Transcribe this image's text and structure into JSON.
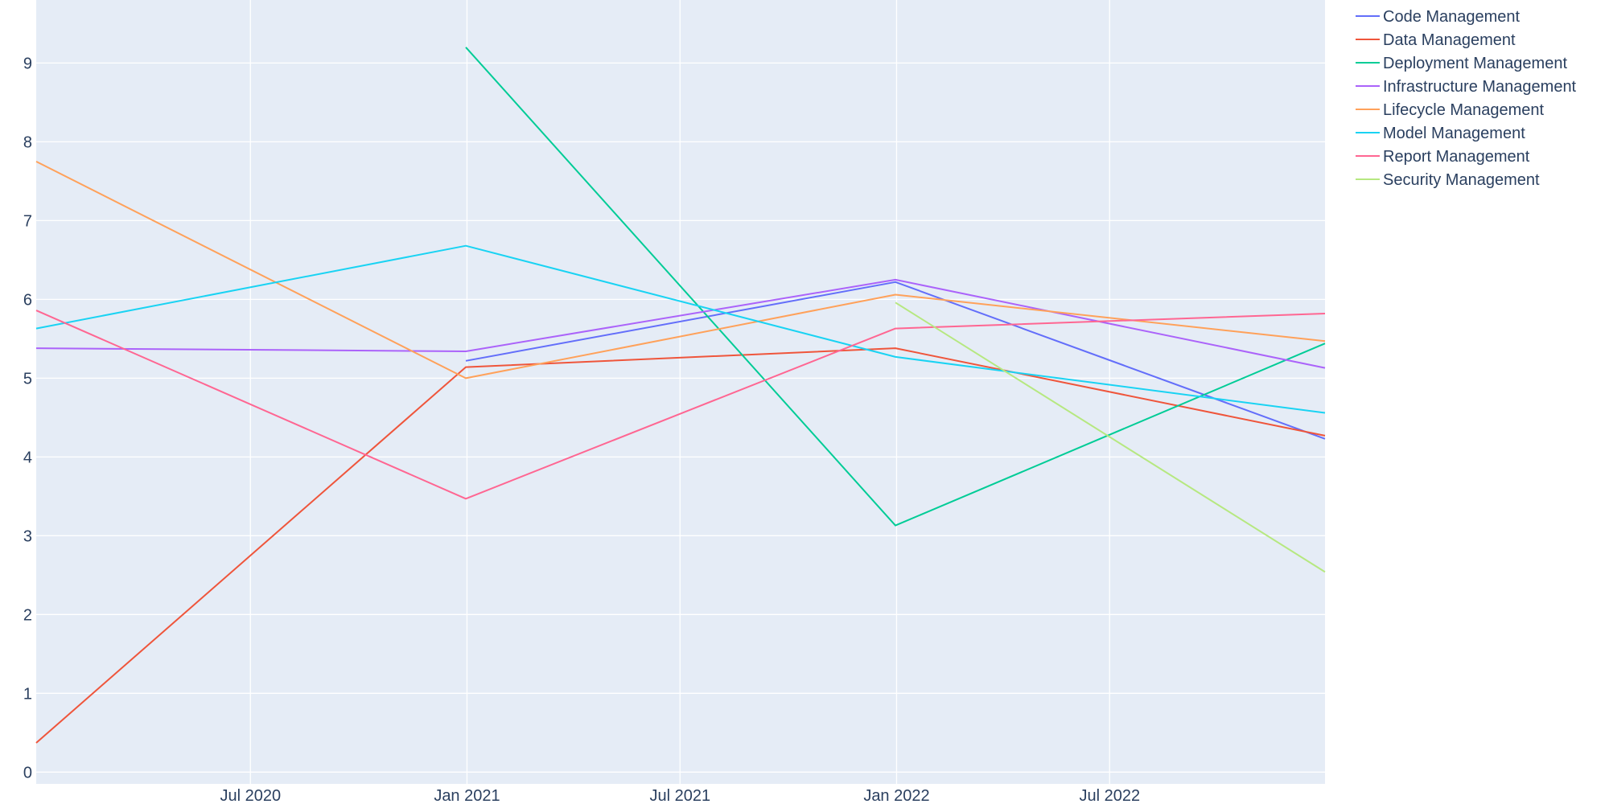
{
  "chart_data": {
    "type": "line",
    "title": "",
    "xlabel": "",
    "ylabel": "",
    "xlim": [
      "2020-01-01",
      "2022-12-31"
    ],
    "ylim": [
      -0.15,
      9.8
    ],
    "x_ticks": [
      {
        "date": "2020-07-01",
        "label": "Jul 2020"
      },
      {
        "date": "2021-01-01",
        "label": "Jan 2021"
      },
      {
        "date": "2021-07-01",
        "label": "Jul 2021"
      },
      {
        "date": "2022-01-01",
        "label": "Jan 2022"
      },
      {
        "date": "2022-07-01",
        "label": "Jul 2022"
      }
    ],
    "y_ticks": [
      0,
      1,
      2,
      3,
      4,
      5,
      6,
      7,
      8,
      9
    ],
    "grid": true,
    "plot_background": "#e5ecf6",
    "legend_position": "right",
    "series": [
      {
        "name": "Code Management",
        "color": "#636efa",
        "x": [
          "2020-12-31",
          "2021-12-31",
          "2022-12-31"
        ],
        "y": [
          5.22,
          6.22,
          4.23
        ]
      },
      {
        "name": "Data Management",
        "color": "#EF553B",
        "x": [
          "2020-01-01",
          "2020-12-31",
          "2021-12-31",
          "2022-12-31"
        ],
        "y": [
          0.37,
          5.14,
          5.38,
          4.27
        ]
      },
      {
        "name": "Deployment Management",
        "color": "#00cc96",
        "x": [
          "2020-12-31",
          "2021-12-31",
          "2022-12-31"
        ],
        "y": [
          9.2,
          3.13,
          5.44
        ]
      },
      {
        "name": "Infrastructure Management",
        "color": "#ab63fa",
        "x": [
          "2020-01-01",
          "2020-12-31",
          "2021-12-31",
          "2022-12-31"
        ],
        "y": [
          5.38,
          5.34,
          6.25,
          5.13
        ]
      },
      {
        "name": "Lifecycle Management",
        "color": "#FFA15A",
        "x": [
          "2020-01-01",
          "2020-12-31",
          "2021-12-31",
          "2022-12-31"
        ],
        "y": [
          7.75,
          5.0,
          6.06,
          5.47
        ]
      },
      {
        "name": "Model Management",
        "color": "#19d3f3",
        "x": [
          "2020-01-01",
          "2020-12-31",
          "2021-12-31",
          "2022-12-31"
        ],
        "y": [
          5.63,
          6.68,
          5.27,
          4.56
        ]
      },
      {
        "name": "Report Management",
        "color": "#FF6692",
        "x": [
          "2020-01-01",
          "2020-12-31",
          "2021-12-31",
          "2022-12-31"
        ],
        "y": [
          5.86,
          3.47,
          5.63,
          5.82
        ]
      },
      {
        "name": "Security Management",
        "color": "#B6E880",
        "x": [
          "2021-12-31",
          "2022-12-31"
        ],
        "y": [
          5.96,
          2.54
        ]
      }
    ]
  }
}
